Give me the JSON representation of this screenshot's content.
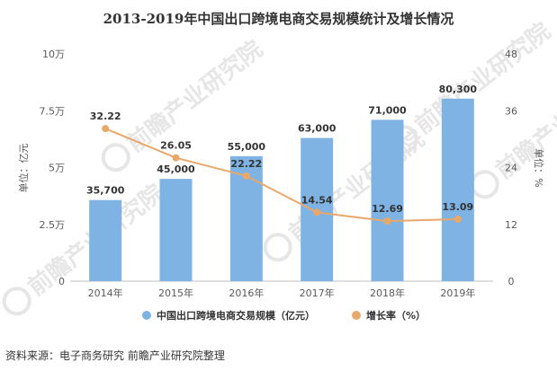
{
  "chart_data": {
    "type": "bar",
    "title": "2013-2019年中国出口跨境电商交易规模统计及增长情况",
    "categories": [
      "2014年",
      "2015年",
      "2016年",
      "2017年",
      "2018年",
      "2019年"
    ],
    "series": [
      {
        "name": "中国出口跨境电商交易规模（亿元）",
        "type": "bar",
        "axis": "left",
        "values": [
          35700,
          45000,
          55000,
          63000,
          71000,
          80300
        ],
        "labels": [
          "35,700",
          "45,000",
          "55,000",
          "63,000",
          "71,000",
          "80,300"
        ],
        "color": "#7eb3e3"
      },
      {
        "name": "增长率（%）",
        "type": "line",
        "axis": "right",
        "values": [
          32.22,
          26.05,
          22.22,
          14.54,
          12.69,
          13.09
        ],
        "labels": [
          "32.22",
          "26.05",
          "22.22",
          "14.54",
          "12.69",
          "13.09"
        ],
        "color": "#e8a86a"
      }
    ],
    "left_axis": {
      "label": "单位：亿元",
      "min": 0,
      "max": 100000,
      "ticks": [
        0,
        25000,
        50000,
        75000,
        100000
      ],
      "tick_labels": [
        "0",
        "2.5万",
        "5万",
        "7.5万",
        "10万"
      ]
    },
    "right_axis": {
      "label": "单位：%",
      "min": 0,
      "max": 48,
      "ticks": [
        0,
        12,
        24,
        36,
        48
      ],
      "tick_labels": [
        "0",
        "12",
        "24",
        "36",
        "48"
      ]
    },
    "grid": false,
    "legend_position": "bottom"
  },
  "watermark": "前瞻产业研究院",
  "source": "资料来源：电子商务研究 前瞻产业研究院整理"
}
